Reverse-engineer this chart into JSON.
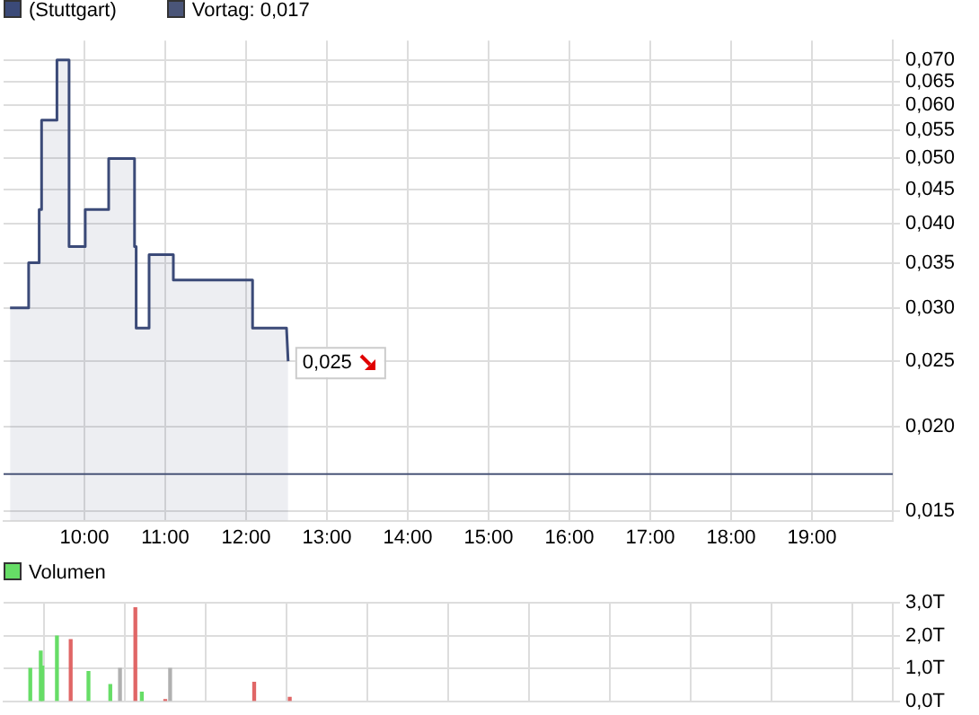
{
  "chart_data": [
    {
      "type": "area",
      "legend": "top",
      "grid": true,
      "log": "y",
      "xlim": [
        9,
        20
      ],
      "xticks": [
        {
          "value": 10,
          "label": "10:00"
        },
        {
          "value": 11,
          "label": "11:00"
        },
        {
          "value": 12,
          "label": "12:00"
        },
        {
          "value": 13,
          "label": "13:00"
        },
        {
          "value": 14,
          "label": "14:00"
        },
        {
          "value": 15,
          "label": "15:00"
        },
        {
          "value": 16,
          "label": "16:00"
        },
        {
          "value": 17,
          "label": "17:00"
        },
        {
          "value": 18,
          "label": "18:00"
        },
        {
          "value": 19,
          "label": "19:00"
        }
      ],
      "ylim": [
        0.0145,
        0.0748
      ],
      "yticks": [
        {
          "value": 0.015,
          "label": "0,015"
        },
        {
          "value": 0.02,
          "label": "0,020"
        },
        {
          "value": 0.025,
          "label": "0,025"
        },
        {
          "value": 0.03,
          "label": "0,030"
        },
        {
          "value": 0.035,
          "label": "0,035"
        },
        {
          "value": 0.04,
          "label": "0,040"
        },
        {
          "value": 0.045,
          "label": "0,045"
        },
        {
          "value": 0.05,
          "label": "0,050"
        },
        {
          "value": 0.055,
          "label": "0,055"
        },
        {
          "value": 0.06,
          "label": "0,060"
        },
        {
          "value": 0.065,
          "label": "0,065"
        },
        {
          "value": 0.07,
          "label": "0,070"
        }
      ],
      "ref_lines": [
        {
          "axis": "y",
          "value": 0.017,
          "label": "Vortag: 0,017",
          "color": "#4a5578"
        }
      ],
      "annotations": [
        {
          "text": "0,025",
          "x": 12.52,
          "y": 0.025
        }
      ],
      "series": [
        {
          "name": "(Stuttgart)",
          "color": "#3b4a78",
          "x": [
            9.08,
            9.31,
            9.31,
            9.44,
            9.44,
            9.47,
            9.47,
            9.66,
            9.66,
            9.81,
            9.81,
            10.01,
            10.01,
            10.3,
            10.3,
            10.62,
            10.62,
            10.64,
            10.64,
            10.8,
            10.8,
            11.1,
            11.1,
            12.08,
            12.08,
            12.5,
            12.52
          ],
          "values": [
            0.03,
            0.03,
            0.035,
            0.035,
            0.042,
            0.042,
            0.057,
            0.057,
            0.07,
            0.07,
            0.037,
            0.037,
            0.042,
            0.042,
            0.05,
            0.05,
            0.037,
            0.037,
            0.028,
            0.028,
            0.036,
            0.036,
            0.033,
            0.033,
            0.028,
            0.028,
            0.025
          ]
        }
      ]
    },
    {
      "type": "bar",
      "legend": "top",
      "grid": true,
      "tick_labels": "y",
      "xlim": [
        9,
        20
      ],
      "xticks": [
        {
          "value": 10,
          "label": null
        },
        {
          "value": 11,
          "label": null
        },
        {
          "value": 12,
          "label": null
        },
        {
          "value": 13,
          "label": null
        },
        {
          "value": 14,
          "label": null
        },
        {
          "value": 15,
          "label": null
        },
        {
          "value": 16,
          "label": null
        },
        {
          "value": 17,
          "label": null
        },
        {
          "value": 18,
          "label": null
        },
        {
          "value": 19,
          "label": null
        }
      ],
      "ylim": [
        0,
        3
      ],
      "yticks": [
        {
          "value": 0,
          "label": "0,0T"
        },
        {
          "value": 1,
          "label": "1,0T"
        },
        {
          "value": 2,
          "label": "2,0T"
        },
        {
          "value": 3,
          "label": "3,0T"
        }
      ],
      "series": [
        {
          "name": "Volumen",
          "color": "#66dd66",
          "x": [
            9.33,
            9.46,
            9.48,
            9.66,
            9.83,
            10.05,
            10.32,
            10.44,
            10.63,
            10.71,
            11.0,
            11.06,
            12.1,
            12.54
          ],
          "values": [
            1.0,
            1.53,
            1.07,
            1.99,
            1.88,
            0.91,
            0.51,
            1.0,
            2.85,
            0.28,
            0.05,
            1.0,
            0.58,
            0.12
          ],
          "colors": [
            "#66dd66",
            "#66dd66",
            "#66dd66",
            "#66dd66",
            "#e06666",
            "#66dd66",
            "#66dd66",
            "#b0b0b0",
            "#e06666",
            "#66dd66",
            "#e06666",
            "#b0b0b0",
            "#e06666",
            "#e06666"
          ]
        }
      ]
    }
  ]
}
